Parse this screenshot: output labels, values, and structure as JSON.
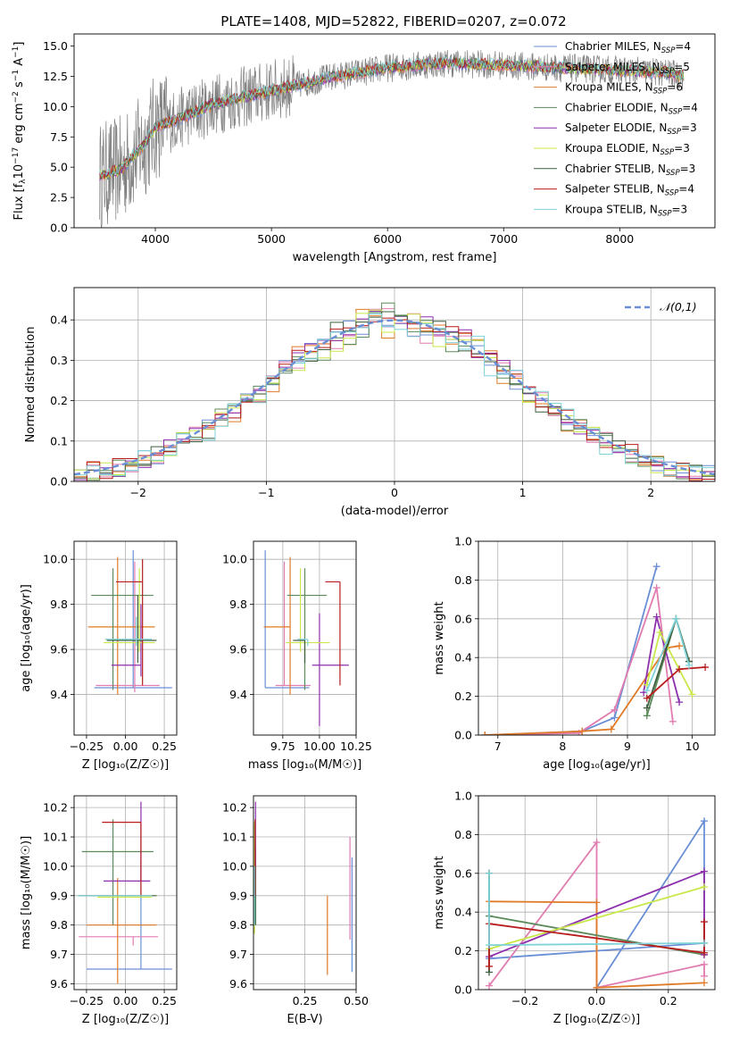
{
  "figure": {
    "title": "PLATE=1408, MJD=52822, FIBERID=0207, z=0.072",
    "colors": [
      "#6a8fd6",
      "#e17cb0",
      "#e07b27",
      "#5b8a5b",
      "#8e2fae",
      "#c9e84a",
      "#3f5f3f",
      "#b81c1c",
      "#7fd3d8"
    ]
  },
  "chart_data": [
    {
      "type": "line",
      "panel": "spectrum",
      "title": "PLATE=1408, MJD=52822, FIBERID=0207, z=0.072",
      "xlabel": "wavelength [Angstrom, rest frame]",
      "ylabel_parts": [
        "Flux [f",
        "λ",
        "10",
        "−17",
        " erg cm",
        "−2",
        " s",
        "−1",
        " A",
        "−1",
        "]"
      ],
      "xlim": [
        3300,
        8820
      ],
      "ylim": [
        0,
        16
      ],
      "xticks": [
        4000,
        5000,
        6000,
        7000,
        8000
      ],
      "yticks": [
        0.0,
        2.5,
        5.0,
        7.5,
        10.0,
        12.5,
        15.0
      ],
      "legend_position": "upper-right",
      "legend": [
        {
          "base": "Chabrier MILES, N",
          "sub": "SSP",
          "tail": "=4",
          "color_index": 0
        },
        {
          "base": "Salpeter MILES, N",
          "sub": "SSP",
          "tail": "=5",
          "color_index": 1
        },
        {
          "base": "Kroupa MILES, N",
          "sub": "SSP",
          "tail": "=6",
          "color_index": 2
        },
        {
          "base": "Chabrier ELODIE, N",
          "sub": "SSP",
          "tail": "=4",
          "color_index": 3
        },
        {
          "base": "Salpeter ELODIE, N",
          "sub": "SSP",
          "tail": "=3",
          "color_index": 4
        },
        {
          "base": "Kroupa ELODIE, N",
          "sub": "SSP",
          "tail": "=3",
          "color_index": 5
        },
        {
          "base": "Chabrier STELIB, N",
          "sub": "SSP",
          "tail": "=3",
          "color_index": 6
        },
        {
          "base": "Salpeter STELIB, N",
          "sub": "SSP",
          "tail": "=4",
          "color_index": 7
        },
        {
          "base": "Kroupa STELIB, N",
          "sub": "SSP",
          "tail": "=3",
          "color_index": 8
        }
      ],
      "continuum": {
        "wavelength": [
          3520,
          3700,
          3900,
          4000,
          4200,
          4500,
          5000,
          5500,
          6000,
          6500,
          7000,
          7500,
          8000,
          8400,
          8550
        ],
        "flux": [
          4.3,
          4.8,
          6.8,
          8.3,
          9.0,
          10.2,
          11.3,
          12.4,
          13.2,
          13.6,
          13.4,
          13.2,
          13.0,
          12.8,
          12.5
        ]
      },
      "data_spectrum_note_color": "#808080"
    },
    {
      "type": "histogram",
      "panel": "residuals",
      "xlabel": "(data-model)/error",
      "ylabel": "Normed distribution",
      "xlim": [
        -2.5,
        2.5
      ],
      "ylim": [
        0,
        0.48
      ],
      "xticks": [
        -2,
        -1,
        0,
        1,
        2
      ],
      "xtick_labels": [
        "−2",
        "−1",
        "0",
        "1",
        "2"
      ],
      "yticks": [
        0.0,
        0.1,
        0.2,
        0.3,
        0.4
      ],
      "grid": true,
      "legend_position": "upper-right",
      "reference_curve": {
        "label": "𝒩(0,1)",
        "color": "#6a8fd6",
        "mean": 0,
        "sigma": 1
      },
      "bin_width": 0.1,
      "bin_start": -2.5
    },
    {
      "type": "errorbar",
      "panel": "Z vs age",
      "xlabel": "Z [log₁₀(Z/Z☉)]",
      "ylabel": "age  [log₁₀(age/yr)]",
      "xlim": [
        -0.33,
        0.33
      ],
      "ylim": [
        9.22,
        10.08
      ],
      "xticks": [
        -0.25,
        0.0,
        0.25
      ],
      "xtick_labels": [
        "−0.25",
        "0.00",
        "0.25"
      ],
      "yticks": [
        9.4,
        9.6,
        9.8,
        10.0
      ],
      "grid": true,
      "points": [
        {
          "x": 0.05,
          "xerr": [
            0.25,
            0.25
          ],
          "y": 9.43,
          "yerr": [
            0.0,
            0.61
          ],
          "color_index": 0
        },
        {
          "x": 0.06,
          "xerr": [
            0.25,
            0.16
          ],
          "y": 9.44,
          "yerr": [
            0.03,
            0.55
          ],
          "color_index": 1
        },
        {
          "x": -0.05,
          "xerr": [
            0.19,
            0.24
          ],
          "y": 9.7,
          "yerr": [
            0.3,
            0.31
          ],
          "color_index": 2
        },
        {
          "x": -0.08,
          "xerr": [
            0.14,
            0.26
          ],
          "y": 9.84,
          "yerr": [
            0.42,
            0.12
          ],
          "color_index": 3
        },
        {
          "x": 0.1,
          "xerr": [
            0.19,
            0.0
          ],
          "y": 9.53,
          "yerr": [
            0.05,
            0.27
          ],
          "color_index": 4
        },
        {
          "x": 0.09,
          "xerr": [
            0.23,
            0.1
          ],
          "y": 9.63,
          "yerr": [
            0.04,
            0.33
          ],
          "color_index": 5
        },
        {
          "x": 0.08,
          "xerr": [
            0.2,
            0.12
          ],
          "y": 9.64,
          "yerr": [
            0.1,
            0.2
          ],
          "color_index": 6
        },
        {
          "x": 0.11,
          "xerr": [
            0.17,
            0.0
          ],
          "y": 9.9,
          "yerr": [
            0.46,
            0.1
          ],
          "color_index": 7
        },
        {
          "x": 0.07,
          "xerr": [
            0.2,
            0.1
          ],
          "y": 9.645,
          "yerr": [
            0.03,
            0.1
          ],
          "color_index": 8
        }
      ]
    },
    {
      "type": "errorbar",
      "panel": "mass vs age",
      "xlabel": "mass [log₁₀(M/M☉)]",
      "xlim": [
        9.55,
        10.25
      ],
      "ylim": [
        9.22,
        10.08
      ],
      "xticks": [
        9.75,
        10.0,
        10.25
      ],
      "xtick_labels": [
        "9.75",
        "10.00",
        "10.25"
      ],
      "yticks": [
        9.4,
        9.6,
        9.8,
        10.0
      ],
      "grid": true,
      "points": [
        {
          "x": 9.63,
          "xerr": [
            0.0,
            0.3
          ],
          "y": 9.43,
          "yerr": [
            0.0,
            0.61
          ],
          "color_index": 0
        },
        {
          "x": 9.76,
          "xerr": [
            0.06,
            0.18
          ],
          "y": 9.44,
          "yerr": [
            0.0,
            0.55
          ],
          "color_index": 1
        },
        {
          "x": 9.8,
          "xerr": [
            0.18,
            0.0
          ],
          "y": 9.7,
          "yerr": [
            0.3,
            0.31
          ],
          "color_index": 2
        },
        {
          "x": 9.9,
          "xerr": [
            0.12,
            0.15
          ],
          "y": 9.84,
          "yerr": [
            0.42,
            0.12
          ],
          "color_index": 3
        },
        {
          "x": 10.0,
          "xerr": [
            0.05,
            0.2
          ],
          "y": 9.53,
          "yerr": [
            0.27,
            0.23
          ],
          "color_index": 4
        },
        {
          "x": 9.87,
          "xerr": [
            0.1,
            0.2
          ],
          "y": 9.63,
          "yerr": [
            0.04,
            0.33
          ],
          "color_index": 5
        },
        {
          "x": 9.9,
          "xerr": [
            0.08,
            0.0
          ],
          "y": 9.64,
          "yerr": [
            0.1,
            0.0
          ],
          "color_index": 6
        },
        {
          "x": 10.14,
          "xerr": [
            0.1,
            0.0
          ],
          "y": 9.9,
          "yerr": [
            0.46,
            0.0
          ],
          "color_index": 7
        },
        {
          "x": 9.92,
          "xerr": [
            0.07,
            0.0
          ],
          "y": 9.645,
          "yerr": [
            0.03,
            0.0
          ],
          "color_index": 8
        }
      ]
    },
    {
      "type": "line",
      "panel": "age vs mass weight",
      "xlabel": "age  [log₁₀(age/yr)]",
      "ylabel": "mass weight",
      "xlim": [
        6.7,
        10.35
      ],
      "ylim": [
        0,
        1
      ],
      "xticks": [
        7,
        8,
        9,
        10
      ],
      "yticks": [
        0.0,
        0.2,
        0.4,
        0.6,
        0.8,
        1.0
      ],
      "grid": true,
      "series": [
        {
          "color_index": 0,
          "x": [
            6.8,
            8.3,
            8.8,
            9.45
          ],
          "y": [
            0.0,
            0.02,
            0.09,
            0.87
          ]
        },
        {
          "color_index": 1,
          "x": [
            6.8,
            8.25,
            8.8,
            9.45,
            9.7
          ],
          "y": [
            0.0,
            0.01,
            0.13,
            0.76,
            0.07
          ]
        },
        {
          "color_index": 2,
          "x": [
            6.8,
            8.3,
            8.75,
            9.6,
            9.8
          ],
          "y": [
            0.0,
            0.02,
            0.03,
            0.45,
            0.46
          ]
        },
        {
          "color_index": 3,
          "x": [
            9.3,
            9.75,
            9.95
          ],
          "y": [
            0.1,
            0.6,
            0.38
          ]
        },
        {
          "color_index": 4,
          "x": [
            9.25,
            9.45,
            9.8
          ],
          "y": [
            0.22,
            0.61,
            0.17
          ]
        },
        {
          "color_index": 5,
          "x": [
            9.3,
            9.5,
            10.0
          ],
          "y": [
            0.26,
            0.53,
            0.21
          ]
        },
        {
          "color_index": 6,
          "x": [
            9.3,
            9.75,
            9.95
          ],
          "y": [
            0.14,
            0.6,
            0.38
          ]
        },
        {
          "color_index": 7,
          "x": [
            9.3,
            9.8,
            10.2
          ],
          "y": [
            0.19,
            0.34,
            0.35
          ]
        },
        {
          "color_index": 8,
          "x": [
            9.3,
            9.75,
            9.95
          ],
          "y": [
            0.23,
            0.6,
            0.36
          ]
        }
      ]
    },
    {
      "type": "errorbar",
      "panel": "Z vs mass",
      "xlabel": "Z [log₁₀(Z/Z☉)]",
      "ylabel": "mass [log₁₀(M/M☉)]",
      "xlim": [
        -0.33,
        0.33
      ],
      "ylim": [
        9.58,
        10.24
      ],
      "xticks": [
        -0.25,
        0.0,
        0.25
      ],
      "xtick_labels": [
        "−0.25",
        "0.00",
        "0.25"
      ],
      "yticks": [
        9.6,
        9.7,
        9.8,
        9.9,
        10.0,
        10.1,
        10.2
      ],
      "grid": true,
      "points": [
        {
          "x": 0.1,
          "xerr": [
            0.35,
            0.2
          ],
          "y": 9.65,
          "yerr": [
            0.0,
            0.37
          ],
          "color_index": 0
        },
        {
          "x": 0.05,
          "xerr": [
            0.35,
            0.16
          ],
          "y": 9.76,
          "yerr": [
            0.03,
            0.0
          ],
          "color_index": 1
        },
        {
          "x": -0.05,
          "xerr": [
            0.2,
            0.25
          ],
          "y": 9.8,
          "yerr": [
            0.2,
            0.16
          ],
          "color_index": 2
        },
        {
          "x": -0.08,
          "xerr": [
            0.2,
            0.26
          ],
          "y": 10.05,
          "yerr": [
            0.25,
            0.11
          ],
          "color_index": 3
        },
        {
          "x": 0.1,
          "xerr": [
            0.24,
            0.06
          ],
          "y": 9.95,
          "yerr": [
            0.0,
            0.27
          ],
          "color_index": 4
        },
        {
          "x": 0.02,
          "xerr": [
            0.2,
            0.15
          ],
          "y": 9.895,
          "yerr": [
            0.0,
            0.0
          ],
          "color_index": 5
        },
        {
          "x": -0.05,
          "xerr": [
            0.25,
            0.25
          ],
          "y": 9.9,
          "yerr": [
            0.0,
            0.0
          ],
          "color_index": 6
        },
        {
          "x": 0.1,
          "xerr": [
            0.25,
            0.0
          ],
          "y": 10.15,
          "yerr": [
            0.25,
            0.0
          ],
          "color_index": 7
        },
        {
          "x": 0.02,
          "xerr": [
            0.33,
            0.15
          ],
          "y": 9.9,
          "yerr": [
            0.0,
            0.0
          ],
          "color_index": 8
        }
      ]
    },
    {
      "type": "errorbar",
      "panel": "E(B-V) vs mass",
      "xlabel": "E(B-V)",
      "xlim": [
        0.0,
        0.5
      ],
      "ylim": [
        9.58,
        10.24
      ],
      "xticks": [
        0.25,
        0.5
      ],
      "xtick_labels": [
        "0.25",
        "0.50"
      ],
      "yticks": [
        9.6,
        9.7,
        9.8,
        9.9,
        10.0,
        10.1,
        10.2
      ],
      "grid": true,
      "points": [
        {
          "x": 0.48,
          "y": 9.8,
          "yerr": [
            0.16,
            0.23
          ],
          "color_index": 0
        },
        {
          "x": 0.47,
          "y": 9.88,
          "yerr": [
            0.13,
            0.22
          ],
          "color_index": 1
        },
        {
          "x": 0.36,
          "y": 9.8,
          "yerr": [
            0.17,
            0.1
          ],
          "color_index": 2
        },
        {
          "x": 0.01,
          "y": 9.95,
          "yerr": [
            0.15,
            0.12
          ],
          "color_index": 3
        },
        {
          "x": 0.01,
          "y": 10.05,
          "yerr": [
            0.1,
            0.17
          ],
          "color_index": 4
        },
        {
          "x": 0.005,
          "y": 9.95,
          "yerr": [
            0.18,
            0.2
          ],
          "color_index": 5
        },
        {
          "x": 0.01,
          "y": 9.9,
          "yerr": [
            0.1,
            0.1
          ],
          "color_index": 6
        },
        {
          "x": 0.008,
          "y": 10.1,
          "yerr": [
            0.2,
            0.06
          ],
          "color_index": 7
        },
        {
          "x": 0.005,
          "y": 9.9,
          "yerr": [
            0.1,
            0.1
          ],
          "color_index": 8
        }
      ]
    },
    {
      "type": "line",
      "panel": "Z vs mass weight",
      "xlabel": "Z [log₁₀(Z/Z☉)]",
      "ylabel": "mass weight",
      "xlim": [
        -0.33,
        0.33
      ],
      "ylim": [
        0,
        1
      ],
      "xticks": [
        -0.2,
        0.0,
        0.2
      ],
      "xtick_labels": [
        "−0.2",
        "0.0",
        "0.2"
      ],
      "yticks": [
        0.0,
        0.2,
        0.4,
        0.6,
        0.8,
        1.0
      ],
      "grid": true,
      "series": [
        {
          "color_index": 0,
          "x": [
            0.0,
            0.3,
            0.3,
            -0.3
          ],
          "y": [
            0.01,
            0.87,
            0.24,
            0.16
          ]
        },
        {
          "color_index": 1,
          "x": [
            -0.3,
            0.0,
            0.0,
            0.3,
            0.3
          ],
          "y": [
            0.02,
            0.76,
            0.01,
            0.13,
            0.07
          ]
        },
        {
          "color_index": 2,
          "x": [
            -0.3,
            0.0,
            0.0,
            0.3
          ],
          "y": [
            0.455,
            0.45,
            0.01,
            0.035
          ]
        },
        {
          "color_index": 3,
          "x": [
            -0.3,
            -0.3,
            0.3
          ],
          "y": [
            0.6,
            0.38,
            0.18
          ]
        },
        {
          "color_index": 4,
          "x": [
            -0.3,
            0.3,
            0.3
          ],
          "y": [
            0.17,
            0.61,
            0.18
          ]
        },
        {
          "color_index": 5,
          "x": [
            -0.3,
            0.3
          ],
          "y": [
            0.21,
            0.53
          ]
        },
        {
          "color_index": 6,
          "x": [
            -0.3,
            -0.3
          ],
          "y": [
            0.09,
            0.6
          ]
        },
        {
          "color_index": 7,
          "x": [
            -0.3,
            -0.3,
            0.3,
            0.3
          ],
          "y": [
            0.12,
            0.34,
            0.19,
            0.35
          ]
        },
        {
          "color_index": 8,
          "x": [
            -0.3,
            -0.3,
            0.3
          ],
          "y": [
            0.6,
            0.23,
            0.24
          ]
        }
      ]
    }
  ]
}
